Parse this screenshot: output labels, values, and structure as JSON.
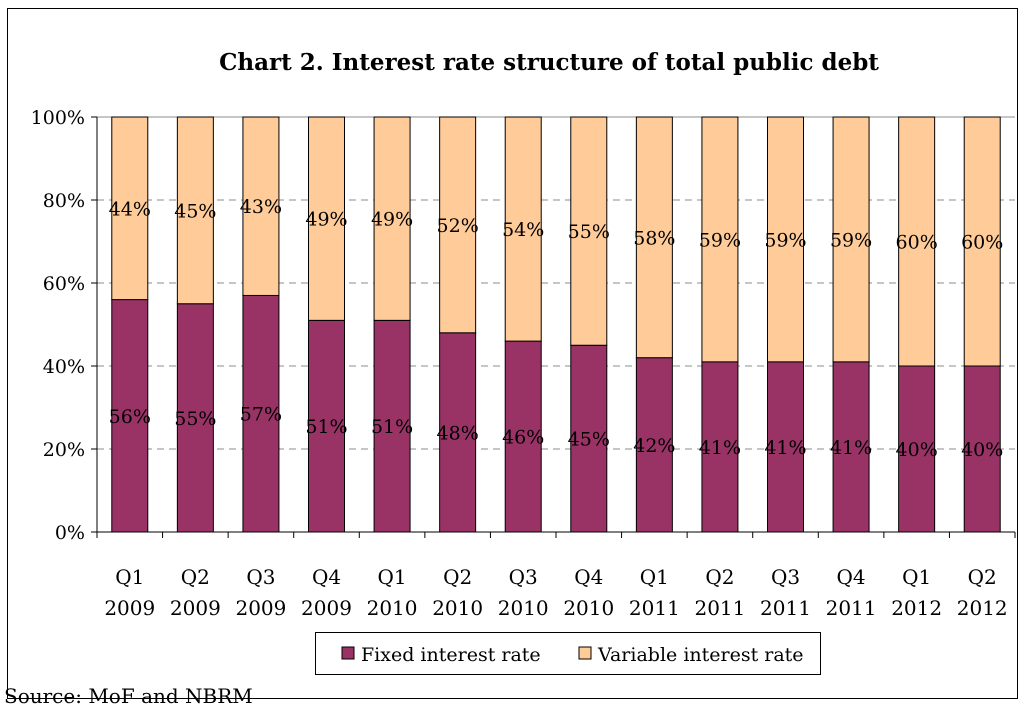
{
  "chart_data": {
    "type": "bar",
    "stacked": true,
    "percent": true,
    "title": "Chart 2. Interest rate structure of total public debt",
    "categories": [
      [
        "Q1",
        "2009"
      ],
      [
        "Q2",
        "2009"
      ],
      [
        "Q3",
        "2009"
      ],
      [
        "Q4",
        "2009"
      ],
      [
        "Q1",
        "2010"
      ],
      [
        "Q2",
        "2010"
      ],
      [
        "Q3",
        "2010"
      ],
      [
        "Q4",
        "2010"
      ],
      [
        "Q1",
        "2011"
      ],
      [
        "Q2",
        "2011"
      ],
      [
        "Q3",
        "2011"
      ],
      [
        "Q4",
        "2011"
      ],
      [
        "Q1",
        "2012"
      ],
      [
        "Q2",
        "2012"
      ]
    ],
    "series": [
      {
        "name": "Fixed interest rate",
        "color": "#993366",
        "values": [
          56,
          55,
          57,
          51,
          51,
          48,
          46,
          45,
          42,
          41,
          41,
          41,
          40,
          40
        ]
      },
      {
        "name": "Variable interest rate",
        "color": "#FFCC99",
        "values": [
          44,
          45,
          43,
          49,
          49,
          52,
          54,
          55,
          58,
          59,
          59,
          59,
          60,
          60
        ]
      }
    ],
    "ylim": [
      0,
      100
    ],
    "yticks": [
      "0%",
      "20%",
      "40%",
      "60%",
      "80%",
      "100%"
    ],
    "grid": true,
    "legend": "bottom",
    "source": "Source: MoF and NBRM"
  }
}
